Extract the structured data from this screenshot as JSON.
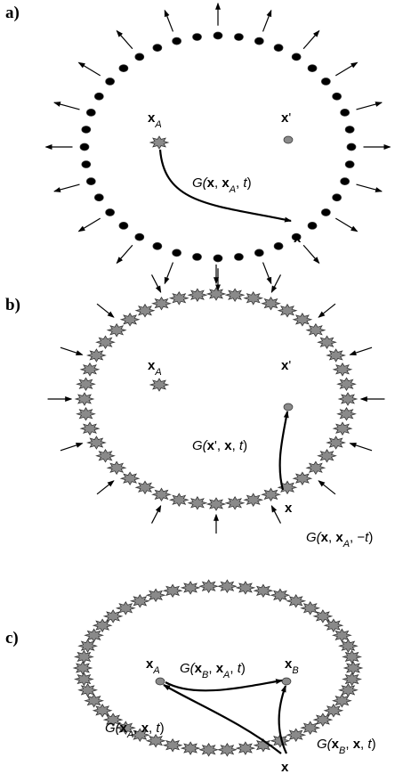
{
  "panels": [
    {
      "label": "a)",
      "source": [
        "x",
        "A"
      ],
      "receiver": [
        "x",
        "'"
      ],
      "boundary": [
        "x"
      ],
      "green": [
        "G(",
        "x",
        ", ",
        "x",
        "A",
        ", ",
        "t",
        ")"
      ]
    },
    {
      "label": "b)",
      "source": [
        "x",
        "A"
      ],
      "receiver": [
        "x",
        "'"
      ],
      "boundary": [
        "x"
      ],
      "green_forward": [
        "G(",
        "x",
        "'",
        ", ",
        "x",
        ", ",
        "t",
        ")"
      ],
      "green_back": [
        "G(",
        "x",
        ", ",
        "x",
        "A",
        ", −",
        "t",
        ")"
      ]
    },
    {
      "label": "c)",
      "source_a": [
        "x",
        "A"
      ],
      "source_b": [
        "x",
        "B"
      ],
      "boundary": [
        "x"
      ],
      "green_ab": [
        "G(",
        "x",
        "B",
        ", ",
        "x",
        "A",
        ", ",
        "t",
        ")"
      ],
      "green_bx": [
        "G(",
        "x",
        "B",
        ", ",
        "x",
        ", ",
        "t",
        ")"
      ],
      "green_ax": [
        "G(",
        "x",
        "A",
        ", ",
        "x",
        ", ",
        "t",
        ")"
      ]
    }
  ]
}
